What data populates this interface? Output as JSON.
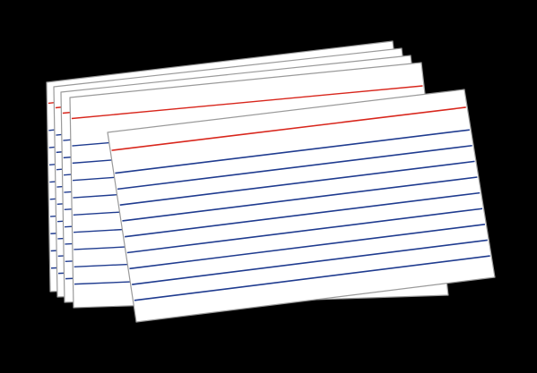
{
  "illustration": {
    "subject": "stack-of-index-cards",
    "card_count": 5,
    "colors": {
      "background": "#000000",
      "card_fill": "#ffffff",
      "card_edge": "#9a9a9a",
      "header_line": "#d8261c",
      "body_line": "#1f3b8f"
    }
  }
}
